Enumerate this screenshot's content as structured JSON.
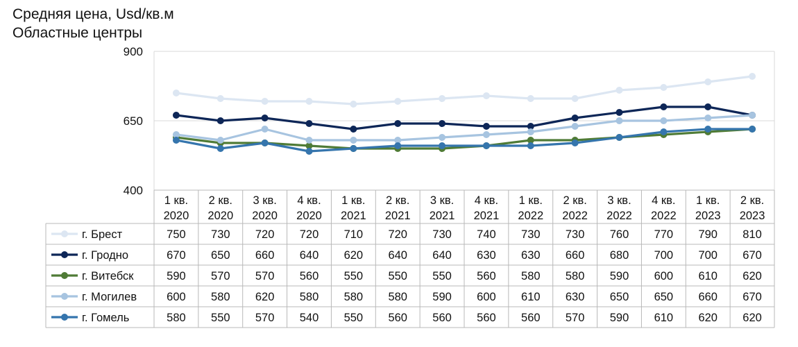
{
  "chart_data": {
    "type": "line",
    "title": "Средняя цена, Usd/кв.м",
    "subtitle": "Областные центры",
    "ylim": [
      400,
      900
    ],
    "yticks": [
      400,
      650,
      900
    ],
    "grid": "horizontal",
    "legend": "data-table",
    "categories": [
      [
        "1 кв.",
        "2020"
      ],
      [
        "2 кв.",
        "2020"
      ],
      [
        "3 кв.",
        "2020"
      ],
      [
        "4 кв.",
        "2020"
      ],
      [
        "1 кв.",
        "2021"
      ],
      [
        "2 кв.",
        "2021"
      ],
      [
        "3 кв.",
        "2021"
      ],
      [
        "4 кв.",
        "2021"
      ],
      [
        "1 кв.",
        "2022"
      ],
      [
        "2 кв.",
        "2022"
      ],
      [
        "3 кв.",
        "2022"
      ],
      [
        "4 кв.",
        "2022"
      ],
      [
        "1 кв.",
        "2023"
      ],
      [
        "2 кв.",
        "2023"
      ]
    ],
    "series": [
      {
        "name": "г. Брест",
        "color": "#dce6f2",
        "values": [
          750,
          730,
          720,
          720,
          710,
          720,
          730,
          740,
          730,
          730,
          760,
          770,
          790,
          810
        ]
      },
      {
        "name": "г. Гродно",
        "color": "#0d2657",
        "values": [
          670,
          650,
          660,
          640,
          620,
          640,
          640,
          630,
          630,
          660,
          680,
          700,
          700,
          670
        ]
      },
      {
        "name": "г. Витебск",
        "color": "#4f7b36",
        "values": [
          590,
          570,
          570,
          560,
          550,
          550,
          550,
          560,
          580,
          580,
          590,
          600,
          610,
          620
        ]
      },
      {
        "name": "г. Могилев",
        "color": "#a7c4e0",
        "values": [
          600,
          580,
          620,
          580,
          580,
          580,
          590,
          600,
          610,
          630,
          650,
          650,
          660,
          670
        ]
      },
      {
        "name": "г. Гомель",
        "color": "#3575ad",
        "values": [
          580,
          550,
          570,
          540,
          550,
          560,
          560,
          560,
          560,
          570,
          590,
          610,
          620,
          620
        ]
      }
    ]
  }
}
